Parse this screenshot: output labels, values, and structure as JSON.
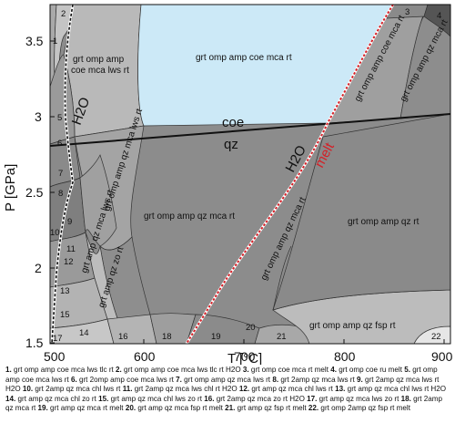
{
  "axes": {
    "x_title": "T [°C]",
    "y_title": "P [GPa]",
    "x_ticks": [
      "500",
      "600",
      "700",
      "800",
      "900"
    ],
    "y_ticks": [
      "1.5",
      "2",
      "2.5",
      "3",
      "3.5"
    ]
  },
  "diagram": {
    "field_labels": [
      "grt omp amp",
      "coe mca lws rt",
      "grt omp amp coe mca rt",
      "grt omp amp coe mca rt",
      "grt omp amp qz mca rt",
      "grt omp amp qz mca lws rt",
      "grt omp amp qz mca rt",
      "grt omp amp qz rt",
      "grt amp qz mca lws rt",
      "grt omp amp qz mca rt",
      "grt amp qz zo rt",
      "grt omp amp qz fsp rt"
    ],
    "boundary_labels": {
      "coe": "coe",
      "qz": "qz",
      "h2o_left": "H2O",
      "h2o_right": "H2O",
      "melt": "melt"
    },
    "field_numbers": [
      "1",
      "2",
      "3",
      "4",
      "5",
      "6",
      "7",
      "8",
      "9",
      "10",
      "11",
      "12",
      "13",
      "14",
      "15",
      "16",
      "17",
      "18",
      "19",
      "20",
      "21",
      "22"
    ]
  },
  "colors": {
    "coesite_field": "#cce9f7",
    "melt_line": "#d51f26",
    "boundary": "#111111"
  },
  "legend": [
    {
      "num": "1.",
      "text": "grt omp amp coe mca lws tlc rt"
    },
    {
      "num": "2.",
      "text": "grt omp amp coe mca lws tlc rt H2O"
    },
    {
      "num": "3.",
      "text": "grt omp coe mca rt melt"
    },
    {
      "num": "4.",
      "text": "grt omp coe ru melt"
    },
    {
      "num": "5.",
      "text": "grt omp amp coe mca lws rt"
    },
    {
      "num": "6.",
      "text": "grt 2omp amp coe mca lws rt"
    },
    {
      "num": "7.",
      "text": "grt omp amp qz mca lws rt"
    },
    {
      "num": "8.",
      "text": "grt 2amp qz mca lws rt"
    },
    {
      "num": "9.",
      "text": "grt 2amp qz mca lws rt H2O"
    },
    {
      "num": "10.",
      "text": "grt 2amp qz mca chl lws rt"
    },
    {
      "num": "11.",
      "text": "grt 2amp qz mca lws chl rt H2O"
    },
    {
      "num": "12.",
      "text": "grt amp qz mca chl lws rt"
    },
    {
      "num": "13.",
      "text": "grt amp qz mca chl lws rt H2O"
    },
    {
      "num": "14.",
      "text": "grt amp qz mca chl zo rt"
    },
    {
      "num": "15.",
      "text": "grt amp qz mca chl lws zo rt"
    },
    {
      "num": "16.",
      "text": "grt 2amp qz mca zo rt H2O"
    },
    {
      "num": "17.",
      "text": "grt amp qz mca lws zo rt"
    },
    {
      "num": "18.",
      "text": "grt 2amp qz mca rt"
    },
    {
      "num": "19.",
      "text": "grt amp qz mca rt melt"
    },
    {
      "num": "20.",
      "text": "grt amp qz mca fsp rt melt"
    },
    {
      "num": "21.",
      "text": "grt amp qz fsp rt melt"
    },
    {
      "num": "22.",
      "text": "grt omp 2amp qz fsp rt melt"
    }
  ]
}
